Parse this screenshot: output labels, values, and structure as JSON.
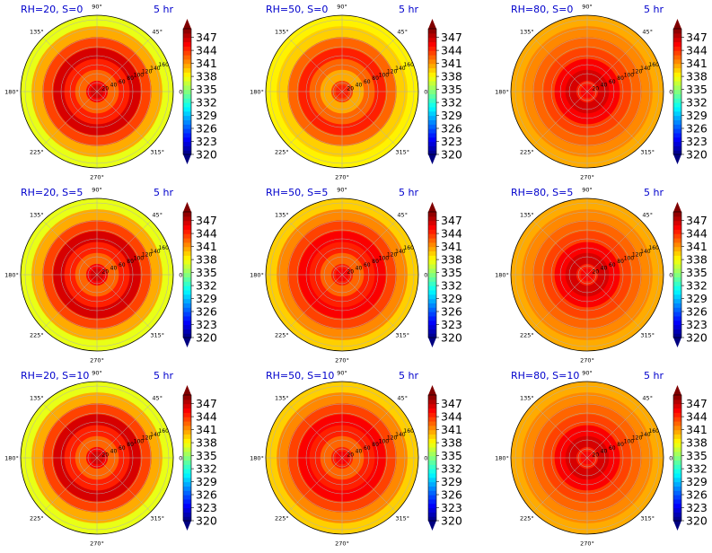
{
  "colorbar": {
    "ticks": [
      "347",
      "344",
      "341",
      "338",
      "335",
      "332",
      "329",
      "326",
      "323",
      "320"
    ],
    "vmin": 320,
    "vmax": 349
  },
  "angle_labels": [
    "90°",
    "45°",
    "0°",
    "315°",
    "270°",
    "225°",
    "180°",
    "135°"
  ],
  "radial_labels": [
    "20",
    "40",
    "60",
    "80",
    "100",
    "120",
    "140",
    "160"
  ],
  "chart_data": [
    {
      "type": "heatmap",
      "projection": "polar",
      "title": "RH=20, S=0",
      "time_label": "5 hr",
      "colorbar_range": [
        320,
        349
      ],
      "r_ticks": [
        20,
        40,
        60,
        80,
        100,
        120,
        140,
        160
      ],
      "theta_ticks_deg": [
        0,
        45,
        90,
        135,
        180,
        225,
        270,
        315
      ],
      "approx_ring_values": [
        345,
        342,
        344,
        346,
        343,
        340,
        337
      ]
    },
    {
      "type": "heatmap",
      "projection": "polar",
      "title": "RH=50, S=0",
      "time_label": "5 hr",
      "colorbar_range": [
        320,
        349
      ],
      "r_ticks": [
        20,
        40,
        60,
        80,
        100,
        120,
        140,
        160
      ],
      "theta_ticks_deg": [
        0,
        45,
        90,
        135,
        180,
        225,
        270,
        315
      ],
      "approx_ring_values": [
        343,
        340,
        342,
        344,
        342,
        339,
        338
      ]
    },
    {
      "type": "heatmap",
      "projection": "polar",
      "title": "RH=80, S=0",
      "time_label": "5 hr",
      "colorbar_range": [
        320,
        349
      ],
      "r_ticks": [
        20,
        40,
        60,
        80,
        100,
        120,
        140,
        160
      ],
      "theta_ticks_deg": [
        0,
        45,
        90,
        135,
        180,
        225,
        270,
        315
      ],
      "approx_ring_values": [
        344,
        346,
        345,
        343,
        342,
        341,
        340
      ]
    },
    {
      "type": "heatmap",
      "projection": "polar",
      "title": "RH=20, S=5",
      "time_label": "5 hr",
      "colorbar_range": [
        320,
        349
      ],
      "r_ticks": [
        20,
        40,
        60,
        80,
        100,
        120,
        140,
        160
      ],
      "theta_ticks_deg": [
        0,
        45,
        90,
        135,
        180,
        225,
        270,
        315
      ],
      "approx_ring_values": [
        345,
        342,
        344,
        346,
        343,
        340,
        337
      ]
    },
    {
      "type": "heatmap",
      "projection": "polar",
      "title": "RH=50, S=5",
      "time_label": "5 hr",
      "colorbar_range": [
        320,
        349
      ],
      "r_ticks": [
        20,
        40,
        60,
        80,
        100,
        120,
        140,
        160
      ],
      "theta_ticks_deg": [
        0,
        45,
        90,
        135,
        180,
        225,
        270,
        315
      ],
      "approx_ring_values": [
        344,
        342,
        344,
        345,
        343,
        341,
        339
      ]
    },
    {
      "type": "heatmap",
      "projection": "polar",
      "title": "RH=80, S=5",
      "time_label": "5 hr",
      "colorbar_range": [
        320,
        349
      ],
      "r_ticks": [
        20,
        40,
        60,
        80,
        100,
        120,
        140,
        160
      ],
      "theta_ticks_deg": [
        0,
        45,
        90,
        135,
        180,
        225,
        270,
        315
      ],
      "approx_ring_values": [
        344,
        346,
        345,
        343,
        342,
        341,
        340
      ]
    },
    {
      "type": "heatmap",
      "projection": "polar",
      "title": "RH=20, S=10",
      "time_label": "5 hr",
      "colorbar_range": [
        320,
        349
      ],
      "r_ticks": [
        20,
        40,
        60,
        80,
        100,
        120,
        140,
        160
      ],
      "theta_ticks_deg": [
        0,
        45,
        90,
        135,
        180,
        225,
        270,
        315
      ],
      "approx_ring_values": [
        345,
        342,
        344,
        346,
        343,
        340,
        337
      ]
    },
    {
      "type": "heatmap",
      "projection": "polar",
      "title": "RH=50, S=10",
      "time_label": "5 hr",
      "colorbar_range": [
        320,
        349
      ],
      "r_ticks": [
        20,
        40,
        60,
        80,
        100,
        120,
        140,
        160
      ],
      "theta_ticks_deg": [
        0,
        45,
        90,
        135,
        180,
        225,
        270,
        315
      ],
      "approx_ring_values": [
        344,
        342,
        344,
        345,
        343,
        341,
        339
      ]
    },
    {
      "type": "heatmap",
      "projection": "polar",
      "title": "RH=80, S=10",
      "time_label": "5 hr",
      "colorbar_range": [
        320,
        349
      ],
      "r_ticks": [
        20,
        40,
        60,
        80,
        100,
        120,
        140,
        160
      ],
      "theta_ticks_deg": [
        0,
        45,
        90,
        135,
        180,
        225,
        270,
        315
      ],
      "approx_ring_values": [
        344,
        346,
        345,
        343,
        342,
        341,
        340
      ]
    }
  ]
}
